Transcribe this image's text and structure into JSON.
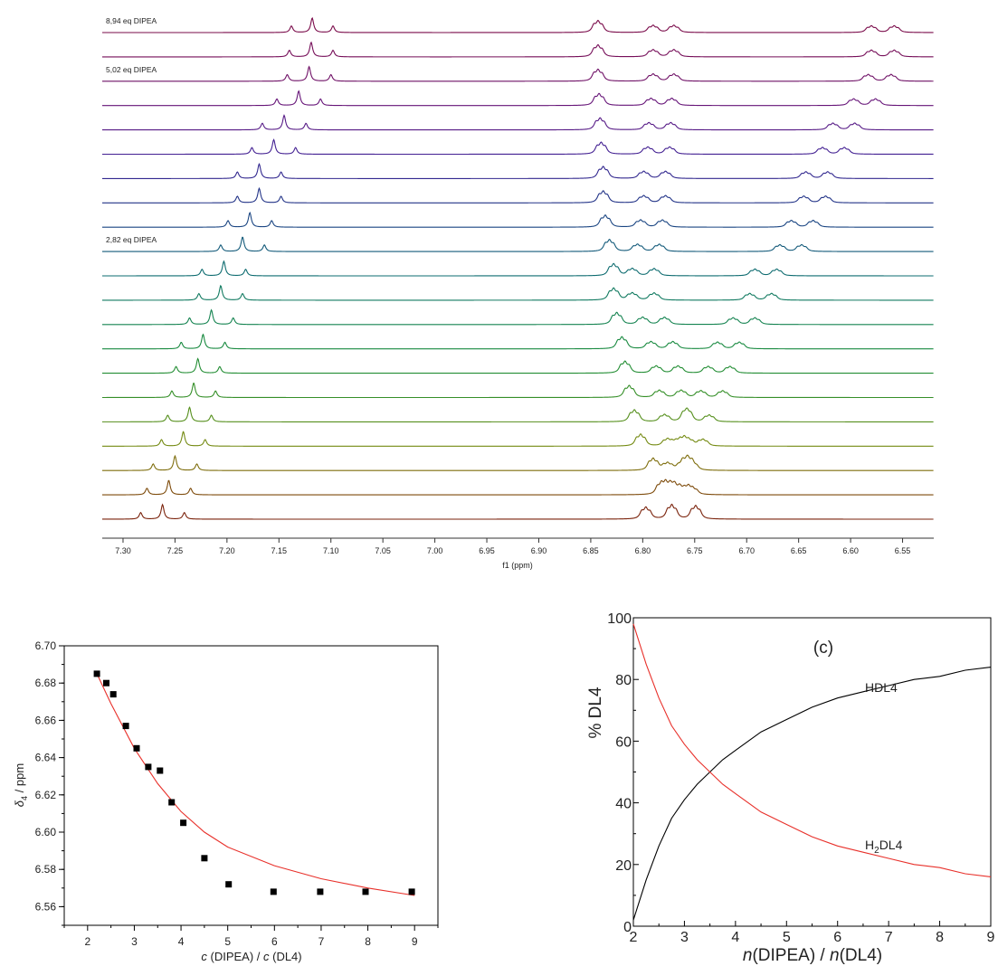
{
  "chart_data": [
    {
      "type": "line",
      "title": "",
      "xlabel": "f1 (ppm)",
      "ylabel": "",
      "xlim": [
        7.32,
        6.52
      ],
      "x_reversed": true,
      "x_ticks": [
        "7.30",
        "7.25",
        "7.20",
        "7.15",
        "7.10",
        "7.05",
        "7.00",
        "6.95",
        "6.90",
        "6.85",
        "6.80",
        "6.75",
        "6.70",
        "6.65",
        "6.60",
        "6.55"
      ],
      "annotations": [
        {
          "text": "8,94 eq DIPEA",
          "spectrum": 1
        },
        {
          "text": "5,02 eq DIPEA",
          "spectrum": 3
        },
        {
          "text": "2,82 eq DIPEA",
          "spectrum": 10
        }
      ],
      "spectra_order": "top to bottom",
      "series": [
        {
          "color": "#7a0b4a",
          "triplet": [
            7.138,
            7.118,
            7.098
          ],
          "multiplets": [
            6.843,
            6.79,
            6.77,
            6.58,
            6.558
          ]
        },
        {
          "color": "#750d58",
          "triplet": [
            7.14,
            7.119,
            7.098
          ],
          "multiplets": [
            6.843,
            6.79,
            6.77,
            6.58,
            6.558
          ]
        },
        {
          "color": "#6f1066",
          "triplet": [
            7.142,
            7.121,
            7.1
          ],
          "multiplets": [
            6.843,
            6.79,
            6.77,
            6.583,
            6.561
          ]
        },
        {
          "color": "#661478",
          "triplet": [
            7.152,
            7.131,
            7.11
          ],
          "multiplets": [
            6.842,
            6.792,
            6.772,
            6.597,
            6.576
          ]
        },
        {
          "color": "#561a86",
          "triplet": [
            7.166,
            7.145,
            7.124
          ],
          "multiplets": [
            6.841,
            6.794,
            6.773,
            6.617,
            6.596
          ]
        },
        {
          "color": "#432092",
          "triplet": [
            7.176,
            7.155,
            7.134
          ],
          "multiplets": [
            6.84,
            6.795,
            6.774,
            6.627,
            6.606
          ]
        },
        {
          "color": "#32288f",
          "triplet": [
            7.19,
            7.169,
            7.148
          ],
          "multiplets": [
            6.838,
            6.799,
            6.778,
            6.643,
            6.622
          ]
        },
        {
          "color": "#233488",
          "triplet": [
            7.19,
            7.169,
            7.148
          ],
          "multiplets": [
            6.838,
            6.799,
            6.778,
            6.645,
            6.624
          ]
        },
        {
          "color": "#1a4582",
          "triplet": [
            7.199,
            7.178,
            7.157
          ],
          "multiplets": [
            6.836,
            6.802,
            6.781,
            6.657,
            6.636
          ]
        },
        {
          "color": "#135a7a",
          "triplet": [
            7.206,
            7.185,
            7.164
          ],
          "multiplets": [
            6.832,
            6.805,
            6.784,
            6.668,
            6.647
          ]
        },
        {
          "color": "#0e6c70",
          "triplet": [
            7.224,
            7.203,
            7.182
          ],
          "multiplets": [
            6.828,
            6.81,
            6.789,
            6.692,
            6.671
          ]
        },
        {
          "color": "#117a60",
          "triplet": [
            7.227,
            7.206,
            7.185
          ],
          "multiplets": [
            6.828,
            6.81,
            6.789,
            6.697,
            6.676
          ]
        },
        {
          "color": "#148350",
          "triplet": [
            7.236,
            7.215,
            7.194
          ],
          "multiplets": [
            6.825,
            6.8,
            6.779,
            6.713,
            6.692
          ]
        },
        {
          "color": "#198a40",
          "triplet": [
            7.244,
            7.223,
            7.202
          ],
          "multiplets": [
            6.82,
            6.792,
            6.771,
            6.728,
            6.707
          ]
        },
        {
          "color": "#228d33",
          "triplet": [
            7.249,
            7.228,
            7.207
          ],
          "multiplets": [
            6.817,
            6.787,
            6.766,
            6.737,
            6.716
          ]
        },
        {
          "color": "#358f28",
          "triplet": [
            7.253,
            7.232,
            7.211
          ],
          "multiplets": [
            6.813,
            6.784,
            6.763,
            6.744,
            6.723
          ]
        },
        {
          "color": "#558f1c",
          "triplet": [
            7.257,
            7.236,
            7.215
          ],
          "multiplets": [
            6.808,
            6.779,
            6.758,
            6.757,
            6.736
          ]
        },
        {
          "color": "#748a12",
          "triplet": [
            7.263,
            7.242,
            7.221
          ],
          "multiplets": [
            6.802,
            6.776,
            6.764,
            6.756,
            6.742
          ]
        },
        {
          "color": "#7e6d0c",
          "triplet": [
            7.271,
            7.25,
            7.229
          ],
          "multiplets": [
            6.79,
            6.776,
            6.757,
            6.752,
            6.762
          ]
        },
        {
          "color": "#7d4a0a",
          "triplet": [
            7.277,
            7.256,
            7.235
          ],
          "multiplets": [
            6.782,
            6.774,
            6.769,
            6.752,
            6.76
          ]
        },
        {
          "color": "#7a220b",
          "triplet": [
            7.283,
            7.262,
            7.241
          ],
          "multiplets": [
            6.797,
            6.772,
            6.772,
            6.749,
            6.749
          ]
        }
      ]
    },
    {
      "type": "scatter",
      "title": "",
      "xlabel": "c (DIPEA) / c (DL4)",
      "ylabel": "δ4 / ppm",
      "xlim": [
        1.5,
        9.5
      ],
      "ylim": [
        6.55,
        6.7
      ],
      "x_ticks": [
        "2",
        "3",
        "4",
        "5",
        "6",
        "7",
        "8",
        "9"
      ],
      "y_ticks": [
        "6.56",
        "6.58",
        "6.60",
        "6.62",
        "6.64",
        "6.66",
        "6.68",
        "6.70"
      ],
      "points": [
        {
          "x": 2.2,
          "y": 6.685
        },
        {
          "x": 2.4,
          "y": 6.68
        },
        {
          "x": 2.55,
          "y": 6.674
        },
        {
          "x": 2.82,
          "y": 6.657
        },
        {
          "x": 3.05,
          "y": 6.645
        },
        {
          "x": 3.3,
          "y": 6.635
        },
        {
          "x": 3.55,
          "y": 6.633
        },
        {
          "x": 3.8,
          "y": 6.616
        },
        {
          "x": 4.05,
          "y": 6.605
        },
        {
          "x": 4.5,
          "y": 6.586
        },
        {
          "x": 5.02,
          "y": 6.572
        },
        {
          "x": 5.98,
          "y": 6.568
        },
        {
          "x": 6.98,
          "y": 6.568
        },
        {
          "x": 7.95,
          "y": 6.568
        },
        {
          "x": 8.94,
          "y": 6.568
        }
      ],
      "fit": [
        {
          "x": 2.2,
          "y": 6.685
        },
        {
          "x": 2.5,
          "y": 6.669
        },
        {
          "x": 3.0,
          "y": 6.645
        },
        {
          "x": 3.5,
          "y": 6.626
        },
        {
          "x": 4.0,
          "y": 6.611
        },
        {
          "x": 4.5,
          "y": 6.6
        },
        {
          "x": 5.0,
          "y": 6.592
        },
        {
          "x": 6.0,
          "y": 6.582
        },
        {
          "x": 7.0,
          "y": 6.575
        },
        {
          "x": 8.0,
          "y": 6.57
        },
        {
          "x": 9.0,
          "y": 6.566
        }
      ],
      "colors": {
        "points": "#000000",
        "fit": "#e8302a"
      }
    },
    {
      "type": "line",
      "title": "(c)",
      "xlabel": "n(DIPEA) / n(DL4)",
      "ylabel": "% DL4",
      "xlim": [
        2,
        9
      ],
      "ylim": [
        0,
        100
      ],
      "x_ticks": [
        "2",
        "3",
        "4",
        "5",
        "6",
        "7",
        "8",
        "9"
      ],
      "y_ticks": [
        "0",
        "20",
        "40",
        "60",
        "80",
        "100"
      ],
      "series": [
        {
          "name": "HDL4",
          "color": "#000000",
          "x": [
            2.0,
            2.25,
            2.5,
            2.75,
            3.0,
            3.25,
            3.5,
            3.75,
            4.0,
            4.5,
            5.0,
            5.5,
            6.0,
            6.5,
            7.0,
            7.5,
            8.0,
            8.5,
            9.0
          ],
          "y": [
            2,
            15,
            26,
            35,
            41,
            46,
            50,
            54,
            57,
            63,
            67,
            71,
            74,
            76,
            78,
            80,
            81,
            83,
            84
          ]
        },
        {
          "name": "H2DL4",
          "label_main": "H",
          "label_sub": "2",
          "label_tail": "DL4",
          "color": "#e8302a",
          "x": [
            2.0,
            2.25,
            2.5,
            2.75,
            3.0,
            3.25,
            3.5,
            3.75,
            4.0,
            4.5,
            5.0,
            5.5,
            6.0,
            6.5,
            7.0,
            7.5,
            8.0,
            8.5,
            9.0
          ],
          "y": [
            98,
            85,
            74,
            65,
            59,
            54,
            50,
            46,
            43,
            37,
            33,
            29,
            26,
            24,
            22,
            20,
            19,
            17,
            16
          ]
        }
      ]
    }
  ]
}
